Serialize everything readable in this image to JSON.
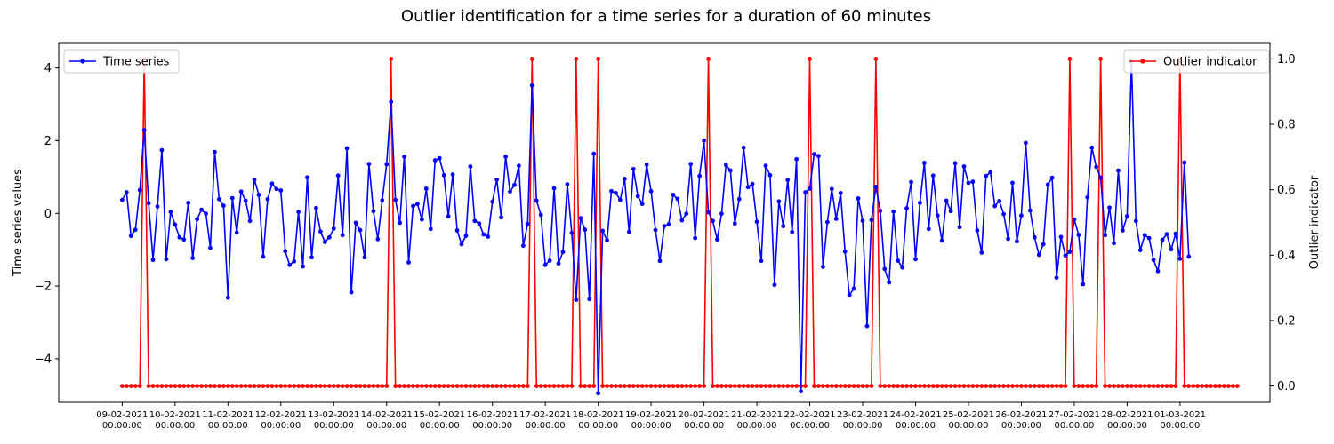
{
  "chart_data": {
    "type": "line",
    "title": "Outlier identification for a time series for a duration of 60 minutes",
    "ylabel": "Time series values",
    "y2label": "Outlier indicator",
    "ylim": [
      -5.2,
      4.7
    ],
    "y2lim": [
      -0.05,
      1.05
    ],
    "yticks": [
      -4,
      -2,
      0,
      2,
      4
    ],
    "y2ticks": [
      0.0,
      0.2,
      0.4,
      0.6,
      0.8,
      1.0
    ],
    "xlim": [
      -1.2,
      21.7
    ],
    "xticks": [
      {
        "label": "09-02-2021",
        "time": "00:00:00"
      },
      {
        "label": "10-02-2021",
        "time": "00:00:00"
      },
      {
        "label": "11-02-2021",
        "time": "00:00:00"
      },
      {
        "label": "12-02-2021",
        "time": "00:00:00"
      },
      {
        "label": "13-02-2021",
        "time": "00:00:00"
      },
      {
        "label": "14-02-2021",
        "time": "00:00:00"
      },
      {
        "label": "15-02-2021",
        "time": "00:00:00"
      },
      {
        "label": "16-02-2021",
        "time": "00:00:00"
      },
      {
        "label": "17-02-2021",
        "time": "00:00:00"
      },
      {
        "label": "18-02-2021",
        "time": "00:00:00"
      },
      {
        "label": "19-02-2021",
        "time": "00:00:00"
      },
      {
        "label": "20-02-2021",
        "time": "00:00:00"
      },
      {
        "label": "21-02-2021",
        "time": "00:00:00"
      },
      {
        "label": "22-02-2021",
        "time": "00:00:00"
      },
      {
        "label": "23-02-2021",
        "time": "00:00:00"
      },
      {
        "label": "24-02-2021",
        "time": "00:00:00"
      },
      {
        "label": "25-02-2021",
        "time": "00:00:00"
      },
      {
        "label": "26-02-2021",
        "time": "00:00:00"
      },
      {
        "label": "27-02-2021",
        "time": "00:00:00"
      },
      {
        "label": "28-02-2021",
        "time": "00:00:00"
      },
      {
        "label": "01-03-2021",
        "time": "00:00:00"
      }
    ],
    "x_step_days": 0.08333,
    "legend": [
      {
        "name": "Time series",
        "placement": "upper-left"
      },
      {
        "name": "Outlier indicator",
        "placement": "upper-right"
      }
    ],
    "series": [
      {
        "name": "Time series",
        "axis": "left",
        "color": "#0000ff",
        "values": [
          0.37,
          0.58,
          -0.62,
          -0.45,
          0.64,
          2.29,
          0.28,
          -1.28,
          0.19,
          1.74,
          -1.26,
          0.04,
          -0.31,
          -0.66,
          -0.72,
          0.29,
          -1.23,
          -0.16,
          0.1,
          -0.01,
          -0.95,
          1.69,
          0.39,
          0.21,
          -2.32,
          0.42,
          -0.53,
          0.6,
          0.35,
          -0.21,
          0.93,
          0.51,
          -1.19,
          0.39,
          0.82,
          0.67,
          0.63,
          -1.04,
          -1.42,
          -1.32,
          0.04,
          -1.46,
          0.99,
          -1.21,
          0.15,
          -0.5,
          -0.79,
          -0.66,
          -0.42,
          1.04,
          -0.6,
          1.79,
          -2.17,
          -0.26,
          -0.46,
          -1.21,
          1.36,
          0.06,
          -0.71,
          0.36,
          1.35,
          3.07,
          0.37,
          -0.26,
          1.56,
          -1.35,
          0.2,
          0.26,
          -0.17,
          0.68,
          -0.43,
          1.46,
          1.52,
          1.05,
          -0.08,
          1.07,
          -0.47,
          -0.85,
          -0.62,
          1.29,
          -0.21,
          -0.28,
          -0.58,
          -0.64,
          0.32,
          0.93,
          -0.11,
          1.56,
          0.6,
          0.78,
          1.31,
          -0.89,
          -0.29,
          3.52,
          0.35,
          -0.04,
          -1.42,
          -1.3,
          0.69,
          -1.38,
          -1.06,
          0.8,
          -0.54,
          -2.38,
          -0.13,
          -0.45,
          -2.36,
          1.64,
          -4.95,
          -0.48,
          -0.74,
          0.61,
          0.56,
          0.37,
          0.95,
          -0.51,
          1.22,
          0.47,
          0.26,
          1.34,
          0.61,
          -0.46,
          -1.31,
          -0.35,
          -0.3,
          0.51,
          0.4,
          -0.19,
          -0.01,
          1.36,
          -0.68,
          1.03,
          2.0,
          0.03,
          -0.21,
          -0.72,
          -0.01,
          1.33,
          1.18,
          -0.28,
          0.39,
          1.81,
          0.72,
          0.81,
          -0.23,
          -1.31,
          1.31,
          1.05,
          -1.97,
          0.33,
          -0.35,
          0.92,
          -0.51,
          1.49,
          -4.9,
          0.58,
          0.68,
          1.63,
          1.58,
          -1.47,
          -0.24,
          0.67,
          -0.15,
          0.56,
          -1.05,
          -2.25,
          -2.07,
          0.41,
          -0.2,
          -3.1,
          -0.18,
          0.73,
          0.07,
          -1.53,
          -1.9,
          0.05,
          -1.3,
          -1.49,
          0.14,
          0.86,
          -1.26,
          0.29,
          1.39,
          -0.43,
          1.04,
          -0.06,
          -0.75,
          0.35,
          0.06,
          1.38,
          -0.38,
          1.29,
          0.84,
          0.87,
          -0.47,
          -1.08,
          1.03,
          1.13,
          0.2,
          0.34,
          -0.02,
          -0.7,
          0.84,
          -0.77,
          -0.06,
          1.94,
          0.08,
          -0.66,
          -1.14,
          -0.85,
          0.79,
          0.98,
          -1.77,
          -0.65,
          -1.16,
          -1.06,
          -0.17,
          -0.59,
          -1.95,
          0.44,
          1.81,
          1.28,
          0.98,
          -0.6,
          0.16,
          -0.82,
          1.18,
          -0.47,
          -0.08,
          4.18,
          -0.21,
          -1.01,
          -0.6,
          -0.68,
          -1.28,
          -1.59,
          -0.73,
          -0.57,
          -0.99,
          -0.56,
          -1.25,
          1.4,
          -1.19
        ]
      },
      {
        "name": "Outlier indicator",
        "axis": "right",
        "color": "#ff0000",
        "values": [
          0,
          0,
          0,
          0,
          0,
          1,
          0,
          0,
          0,
          0,
          0,
          0,
          0,
          0,
          0,
          0,
          0,
          0,
          0,
          0,
          0,
          0,
          0,
          0,
          0,
          0,
          0,
          0,
          0,
          0,
          0,
          0,
          0,
          0,
          0,
          0,
          0,
          0,
          0,
          0,
          0,
          0,
          0,
          0,
          0,
          0,
          0,
          0,
          0,
          0,
          0,
          0,
          0,
          0,
          0,
          0,
          0,
          0,
          0,
          0,
          0,
          1,
          0,
          0,
          0,
          0,
          0,
          0,
          0,
          0,
          0,
          0,
          0,
          0,
          0,
          0,
          0,
          0,
          0,
          0,
          0,
          0,
          0,
          0,
          0,
          0,
          0,
          0,
          0,
          0,
          0,
          0,
          0,
          1,
          0,
          0,
          0,
          0,
          0,
          0,
          0,
          0,
          0,
          1,
          0,
          0,
          0,
          0,
          1,
          0,
          0,
          0,
          0,
          0,
          0,
          0,
          0,
          0,
          0,
          0,
          0,
          0,
          0,
          0,
          0,
          0,
          0,
          0,
          0,
          0,
          0,
          0,
          0,
          1,
          0,
          0,
          0,
          0,
          0,
          0,
          0,
          0,
          0,
          0,
          0,
          0,
          0,
          0,
          0,
          0,
          0,
          0,
          0,
          0,
          0,
          0,
          1,
          0,
          0,
          0,
          0,
          0,
          0,
          0,
          0,
          0,
          0,
          0,
          0,
          0,
          0,
          1,
          0,
          0,
          0,
          0,
          0,
          0,
          0,
          0,
          0,
          0,
          0,
          0,
          0,
          0,
          0,
          0,
          0,
          0,
          0,
          0,
          0,
          0,
          0,
          0,
          0,
          0,
          0,
          0,
          0,
          0,
          0,
          0,
          0,
          0,
          0,
          0,
          0,
          0,
          0,
          0,
          0,
          0,
          0,
          1,
          0,
          0,
          0,
          0,
          0,
          0,
          1,
          0,
          0,
          0,
          0,
          0,
          0,
          0,
          0,
          0,
          0,
          0,
          0,
          0,
          0,
          0,
          0,
          0,
          1,
          0,
          0,
          0,
          0,
          0,
          0,
          0,
          0,
          0,
          0,
          0,
          0,
          0
        ]
      }
    ]
  }
}
